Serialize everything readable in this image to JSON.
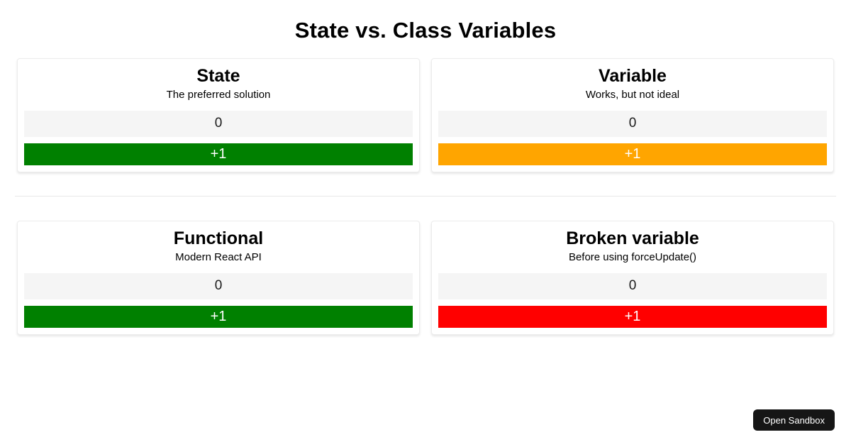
{
  "page": {
    "title": "State vs. Class Variables"
  },
  "cards": [
    {
      "title": "State",
      "subtitle": "The preferred solution",
      "count": "0",
      "button_label": "+1",
      "button_color": "#008000"
    },
    {
      "title": "Variable",
      "subtitle": "Works, but not ideal",
      "count": "0",
      "button_label": "+1",
      "button_color": "#ffa500"
    },
    {
      "title": "Functional",
      "subtitle": "Modern React API",
      "count": "0",
      "button_label": "+1",
      "button_color": "#008000"
    },
    {
      "title": "Broken variable",
      "subtitle": "Before using forceUpdate()",
      "count": "0",
      "button_label": "+1",
      "button_color": "#ff0000"
    }
  ],
  "colors": {
    "counter_background": "#f5f5f5",
    "card_border": "#ececec",
    "divider": "#e8e8e8",
    "green": "#008000",
    "orange": "#ffa500",
    "red": "#ff0000",
    "sandbox_button_background": "#161616"
  },
  "sandbox_button": {
    "label": "Open Sandbox"
  }
}
